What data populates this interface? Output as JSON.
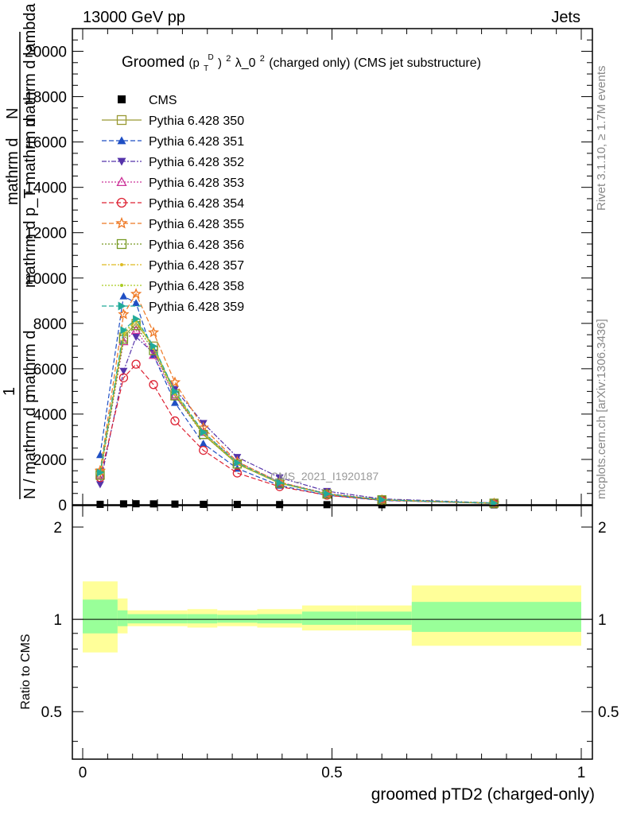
{
  "header": {
    "left": "13000 GeV pp",
    "right": "Jets"
  },
  "side_labels": {
    "rivet": "Rivet 3.1.10, ≥ 1.7M events",
    "mcplots": "mcplots.cern.ch [arXiv:1306.3436]"
  },
  "watermark": "CMS_2021_I1920187",
  "colors": {
    "band_outer": "#ffff99",
    "band_inner": "#99ff99",
    "data": "#000000"
  },
  "chart_data": [
    {
      "type": "line",
      "title_main": "Groomed",
      "title_formula": "(p",
      "title_sup_d": "D",
      "title_sub_t": "T",
      "title_close": ")",
      "title_sup_2": "2",
      "title_rest": " λ_0",
      "title_sup_2b": "2",
      "title_tail": "  (charged only) (CMS jet substructure)",
      "ylabel_top": "mathrm d",
      "ylabel_top2": "N",
      "ylabel_mid": "mathrm d^2N",
      "ylabel_frac_left": "1",
      "ylabel_bottom": "mathrm d",
      "ylabel_bottom2": "N / mathrm d p",
      "ylabel_extra": "mathrm d lambda",
      "ylabel_extra2": "mathrm d p_T mathrm d",
      "xlim": [
        0,
        1
      ],
      "ylim": [
        0,
        21000
      ],
      "yticks": [
        0,
        2000,
        4000,
        6000,
        8000,
        10000,
        12000,
        14000,
        16000,
        18000,
        20000
      ],
      "ytick_labels": [
        "0",
        "2000",
        "4000",
        "6000",
        "8000",
        "10000",
        "12000",
        "14000",
        "16000",
        "18000",
        "20000"
      ],
      "x": [
        0.035,
        0.082,
        0.107,
        0.142,
        0.185,
        0.242,
        0.31,
        0.395,
        0.49,
        0.6,
        0.825
      ],
      "legend_placement": "top-left",
      "series": [
        {
          "name": "CMS",
          "color": "#000000",
          "marker": "square-filled",
          "dash": "none",
          "values": [
            20,
            40,
            45,
            40,
            30,
            20,
            15,
            10,
            5,
            3,
            1
          ]
        },
        {
          "name": "Pythia 6.428 350",
          "color": "#999933",
          "marker": "square-open",
          "dash": "solid",
          "values": [
            1400,
            7400,
            8000,
            7000,
            4900,
            3100,
            1800,
            950,
            480,
            220,
            70
          ]
        },
        {
          "name": "Pythia 6.428 351",
          "color": "#1f4fc4",
          "marker": "triangle-up-filled",
          "dash": "6,3",
          "values": [
            2200,
            9200,
            8900,
            6600,
            4500,
            2700,
            1600,
            850,
            420,
            190,
            60
          ]
        },
        {
          "name": "Pythia 6.428 352",
          "color": "#5533aa",
          "marker": "triangle-down-filled",
          "dash": "6,2,2,2",
          "values": [
            900,
            5900,
            7400,
            6700,
            5100,
            3600,
            2100,
            1200,
            600,
            260,
            80
          ]
        },
        {
          "name": "Pythia 6.428 353",
          "color": "#cc3399",
          "marker": "triangle-up-open",
          "dash": "2,2",
          "values": [
            1300,
            7200,
            7700,
            6600,
            4800,
            3200,
            1900,
            1000,
            500,
            230,
            70
          ]
        },
        {
          "name": "Pythia 6.428 354",
          "color": "#dd2233",
          "marker": "circle-open",
          "dash": "6,3",
          "values": [
            1200,
            5600,
            6200,
            5300,
            3700,
            2400,
            1400,
            800,
            420,
            200,
            60
          ]
        },
        {
          "name": "Pythia 6.428 355",
          "color": "#ee7722",
          "marker": "star-open",
          "dash": "6,3",
          "values": [
            1500,
            8400,
            9300,
            7600,
            5400,
            3400,
            1900,
            1000,
            480,
            210,
            65
          ]
        },
        {
          "name": "Pythia 6.428 356",
          "color": "#779922",
          "marker": "square-open",
          "dash": "2,2",
          "values": [
            1300,
            7300,
            7900,
            6800,
            4800,
            3100,
            1800,
            950,
            470,
            215,
            68
          ]
        },
        {
          "name": "Pythia 6.428 357",
          "color": "#ddbb22",
          "marker": "dot",
          "dash": "6,2,2,2",
          "values": [
            1350,
            7500,
            8100,
            6900,
            4900,
            3150,
            1820,
            960,
            475,
            218,
            69
          ]
        },
        {
          "name": "Pythia 6.428 358",
          "color": "#aacc22",
          "marker": "dot",
          "dash": "2,2",
          "values": [
            1380,
            7600,
            8150,
            6950,
            4950,
            3180,
            1830,
            965,
            478,
            220,
            70
          ]
        },
        {
          "name": "Pythia 6.428 359",
          "color": "#22aa99",
          "marker": "triangle-right-filled",
          "dash": "6,3",
          "values": [
            1420,
            7700,
            8200,
            7000,
            5000,
            3200,
            1850,
            970,
            480,
            222,
            71
          ]
        }
      ]
    },
    {
      "type": "area",
      "ylabel": "Ratio to CMS",
      "xlabel": "groomed pTD2 (charged-only)",
      "xlim": [
        0,
        1
      ],
      "ylim": [
        0.35,
        2.35
      ],
      "y_scale": "log",
      "yticks": [
        0.5,
        1,
        2
      ],
      "ytick_labels": [
        "0.5",
        "1",
        "2"
      ],
      "xticks": [
        0,
        0.5,
        1
      ],
      "xtick_labels": [
        "0",
        "0.5",
        "1"
      ],
      "bins": [
        {
          "lo": 0.0,
          "hi": 0.07,
          "outer": [
            0.78,
            1.33
          ],
          "inner": [
            0.9,
            1.16
          ]
        },
        {
          "lo": 0.07,
          "hi": 0.09,
          "outer": [
            0.9,
            1.17
          ],
          "inner": [
            0.95,
            1.07
          ]
        },
        {
          "lo": 0.09,
          "hi": 0.21,
          "outer": [
            0.95,
            1.07
          ],
          "inner": [
            0.97,
            1.04
          ]
        },
        {
          "lo": 0.21,
          "hi": 0.27,
          "outer": [
            0.94,
            1.08
          ],
          "inner": [
            0.97,
            1.04
          ]
        },
        {
          "lo": 0.27,
          "hi": 0.35,
          "outer": [
            0.95,
            1.07
          ],
          "inner": [
            0.975,
            1.035
          ]
        },
        {
          "lo": 0.35,
          "hi": 0.44,
          "outer": [
            0.94,
            1.08
          ],
          "inner": [
            0.97,
            1.04
          ]
        },
        {
          "lo": 0.44,
          "hi": 0.55,
          "outer": [
            0.92,
            1.11
          ],
          "inner": [
            0.96,
            1.06
          ]
        },
        {
          "lo": 0.55,
          "hi": 0.66,
          "outer": [
            0.92,
            1.11
          ],
          "inner": [
            0.96,
            1.06
          ]
        },
        {
          "lo": 0.66,
          "hi": 1.0,
          "outer": [
            0.82,
            1.29
          ],
          "inner": [
            0.91,
            1.14
          ]
        }
      ]
    }
  ]
}
